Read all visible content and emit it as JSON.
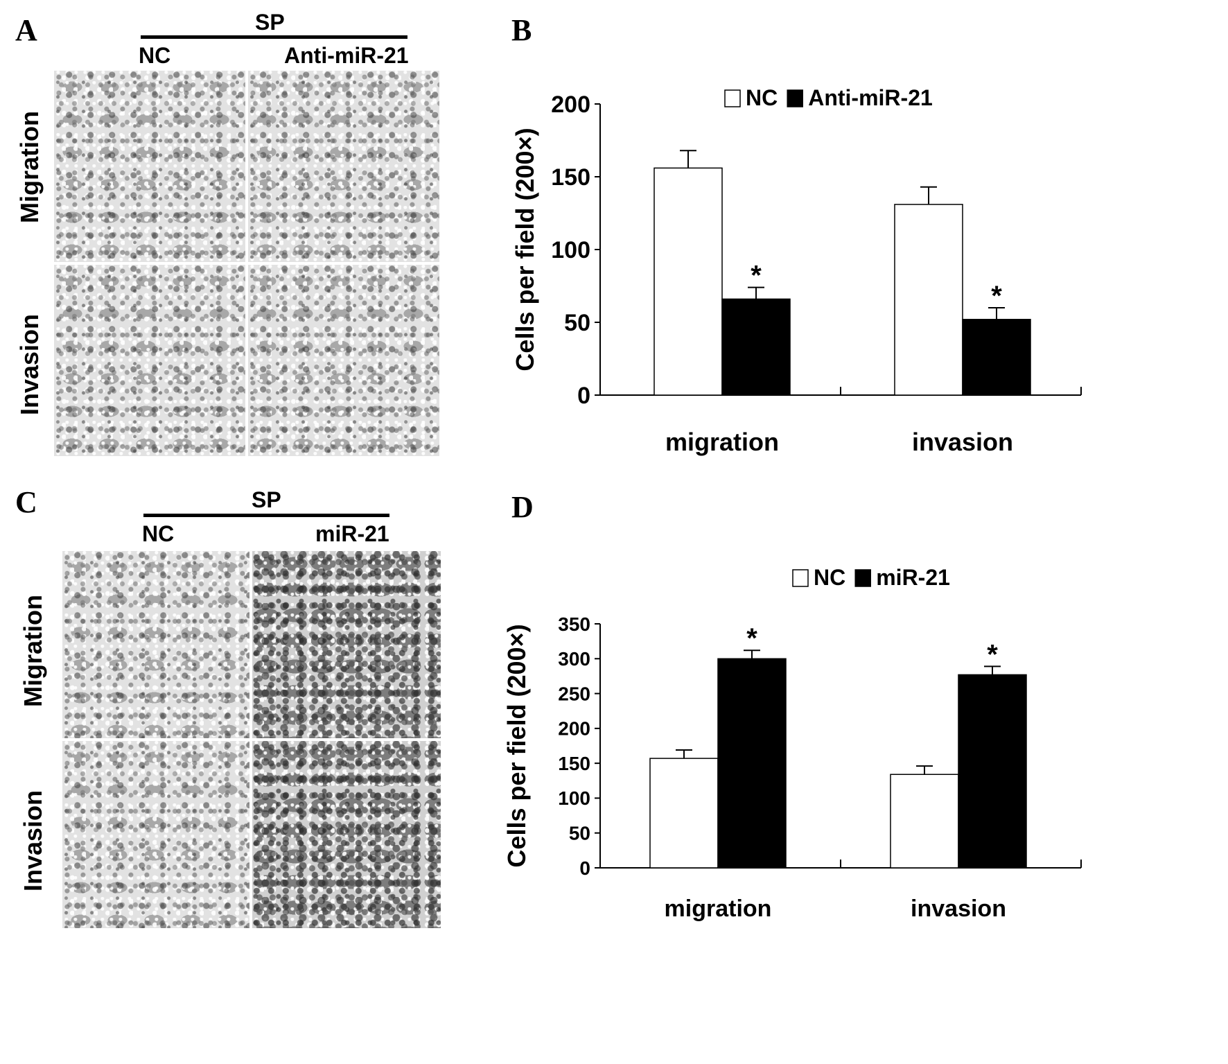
{
  "panels": {
    "A": {
      "letter": "A",
      "group_label": "SP",
      "col_left": "NC",
      "col_right": "Anti-miR-21",
      "row_top": "Migration",
      "row_bottom": "Invasion"
    },
    "B": {
      "letter": "B"
    },
    "C": {
      "letter": "C",
      "group_label": "SP",
      "col_left": "NC",
      "col_right": "miR-21",
      "row_top": "Migration",
      "row_bottom": "Invasion"
    },
    "D": {
      "letter": "D"
    }
  },
  "chart_data": [
    {
      "type": "bar",
      "panel": "B",
      "categories": [
        "migration",
        "invasion"
      ],
      "series": [
        {
          "name": "NC",
          "values": [
            156,
            131
          ],
          "errors": [
            12,
            12
          ],
          "color": "#ffffff"
        },
        {
          "name": "Anti-miR-21",
          "values": [
            66,
            52
          ],
          "errors": [
            8,
            8
          ],
          "color": "#000000"
        }
      ],
      "annotations": [
        {
          "category": "migration",
          "series": "Anti-miR-21",
          "text": "*"
        },
        {
          "category": "invasion",
          "series": "Anti-miR-21",
          "text": "*"
        }
      ],
      "ylabel": "Cells per field (200×)",
      "yticks": [
        "0",
        "50",
        "100",
        "150",
        "200"
      ],
      "ylim": [
        0,
        200
      ],
      "legend": "top-center",
      "grid": false
    },
    {
      "type": "bar",
      "panel": "D",
      "categories": [
        "migration",
        "invasion"
      ],
      "series": [
        {
          "name": "NC",
          "values": [
            157,
            134
          ],
          "errors": [
            12,
            12
          ],
          "color": "#ffffff"
        },
        {
          "name": "miR-21",
          "values": [
            300,
            277
          ],
          "errors": [
            12,
            12
          ],
          "color": "#000000"
        }
      ],
      "annotations": [
        {
          "category": "migration",
          "series": "miR-21",
          "text": "*"
        },
        {
          "category": "invasion",
          "series": "miR-21",
          "text": "*"
        }
      ],
      "ylabel": "Cells per field (200×)",
      "yticks": [
        "0",
        "50",
        "100",
        "150",
        "200",
        "250",
        "300",
        "350"
      ],
      "ylim": [
        0,
        350
      ],
      "legend": "top-center",
      "grid": false
    }
  ]
}
